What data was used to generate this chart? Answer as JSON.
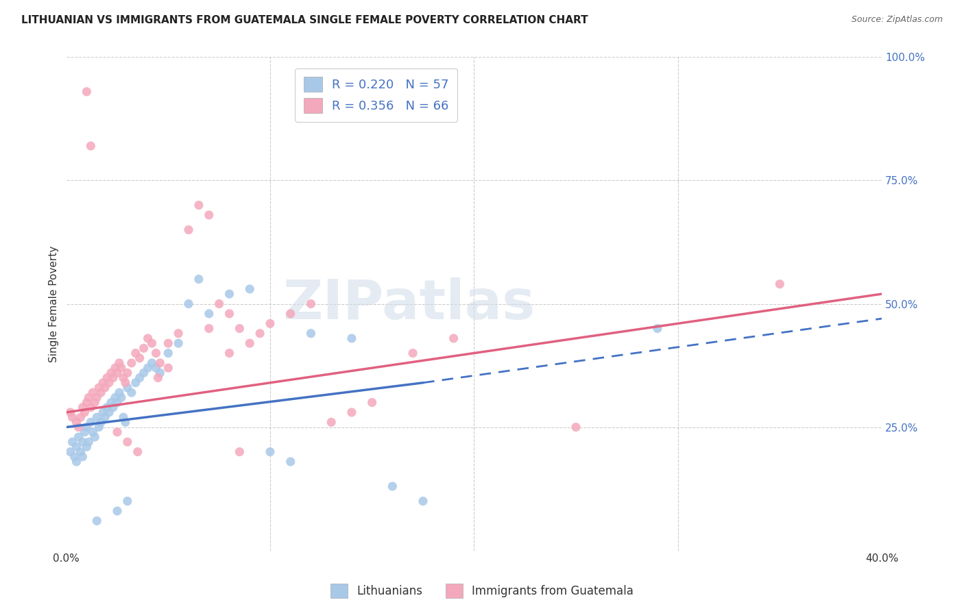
{
  "title": "LITHUANIAN VS IMMIGRANTS FROM GUATEMALA SINGLE FEMALE POVERTY CORRELATION CHART",
  "source": "Source: ZipAtlas.com",
  "legend_label1": "Lithuanians",
  "legend_label2": "Immigrants from Guatemala",
  "R1": 0.22,
  "N1": 57,
  "R2": 0.356,
  "N2": 66,
  "color1": "#a8c8e8",
  "color2": "#f4a8bc",
  "line1_color": "#4472c4",
  "line2_color": "#e06080",
  "watermark_color": "#d0dce8",
  "watermark_text": "ZIPatlas",
  "xlim": [
    0.0,
    0.4
  ],
  "ylim": [
    0.0,
    1.0
  ],
  "background_color": "#ffffff",
  "title_fontsize": 11,
  "source_fontsize": 9,
  "line1_x0": 0.0,
  "line1_y0": 0.25,
  "line1_x_solid_end": 0.175,
  "line1_y_solid_end": 0.34,
  "line1_x1": 0.4,
  "line1_y1": 0.47,
  "line2_x0": 0.0,
  "line2_y0": 0.28,
  "line2_x1": 0.4,
  "line2_y1": 0.52,
  "scatter1_x": [
    0.002,
    0.003,
    0.004,
    0.005,
    0.005,
    0.006,
    0.007,
    0.008,
    0.008,
    0.009,
    0.01,
    0.01,
    0.011,
    0.012,
    0.013,
    0.014,
    0.015,
    0.016,
    0.017,
    0.018,
    0.019,
    0.02,
    0.021,
    0.022,
    0.023,
    0.024,
    0.025,
    0.026,
    0.027,
    0.028,
    0.029,
    0.03,
    0.032,
    0.034,
    0.036,
    0.038,
    0.04,
    0.042,
    0.044,
    0.046,
    0.05,
    0.055,
    0.06,
    0.065,
    0.07,
    0.08,
    0.09,
    0.1,
    0.11,
    0.12,
    0.14,
    0.16,
    0.175,
    0.03,
    0.025,
    0.015,
    0.29
  ],
  "scatter1_y": [
    0.2,
    0.22,
    0.19,
    0.21,
    0.18,
    0.23,
    0.2,
    0.22,
    0.19,
    0.24,
    0.25,
    0.21,
    0.22,
    0.26,
    0.24,
    0.23,
    0.27,
    0.25,
    0.26,
    0.28,
    0.27,
    0.29,
    0.28,
    0.3,
    0.29,
    0.31,
    0.3,
    0.32,
    0.31,
    0.27,
    0.26,
    0.33,
    0.32,
    0.34,
    0.35,
    0.36,
    0.37,
    0.38,
    0.37,
    0.36,
    0.4,
    0.42,
    0.5,
    0.55,
    0.48,
    0.52,
    0.53,
    0.2,
    0.18,
    0.44,
    0.43,
    0.13,
    0.1,
    0.1,
    0.08,
    0.06,
    0.45
  ],
  "scatter2_x": [
    0.002,
    0.003,
    0.005,
    0.006,
    0.007,
    0.008,
    0.009,
    0.01,
    0.011,
    0.012,
    0.013,
    0.014,
    0.015,
    0.016,
    0.017,
    0.018,
    0.019,
    0.02,
    0.021,
    0.022,
    0.023,
    0.024,
    0.025,
    0.026,
    0.027,
    0.028,
    0.029,
    0.03,
    0.032,
    0.034,
    0.036,
    0.038,
    0.04,
    0.042,
    0.044,
    0.046,
    0.05,
    0.055,
    0.06,
    0.065,
    0.07,
    0.075,
    0.08,
    0.085,
    0.09,
    0.095,
    0.1,
    0.11,
    0.12,
    0.13,
    0.14,
    0.15,
    0.17,
    0.19,
    0.025,
    0.03,
    0.035,
    0.045,
    0.05,
    0.07,
    0.08,
    0.085,
    0.35,
    0.25,
    0.01,
    0.012
  ],
  "scatter2_y": [
    0.28,
    0.27,
    0.26,
    0.25,
    0.27,
    0.29,
    0.28,
    0.3,
    0.31,
    0.29,
    0.32,
    0.3,
    0.31,
    0.33,
    0.32,
    0.34,
    0.33,
    0.35,
    0.34,
    0.36,
    0.35,
    0.37,
    0.36,
    0.38,
    0.37,
    0.35,
    0.34,
    0.36,
    0.38,
    0.4,
    0.39,
    0.41,
    0.43,
    0.42,
    0.4,
    0.38,
    0.42,
    0.44,
    0.65,
    0.7,
    0.68,
    0.5,
    0.48,
    0.45,
    0.42,
    0.44,
    0.46,
    0.48,
    0.5,
    0.26,
    0.28,
    0.3,
    0.4,
    0.43,
    0.24,
    0.22,
    0.2,
    0.35,
    0.37,
    0.45,
    0.4,
    0.2,
    0.54,
    0.25,
    0.93,
    0.82
  ]
}
